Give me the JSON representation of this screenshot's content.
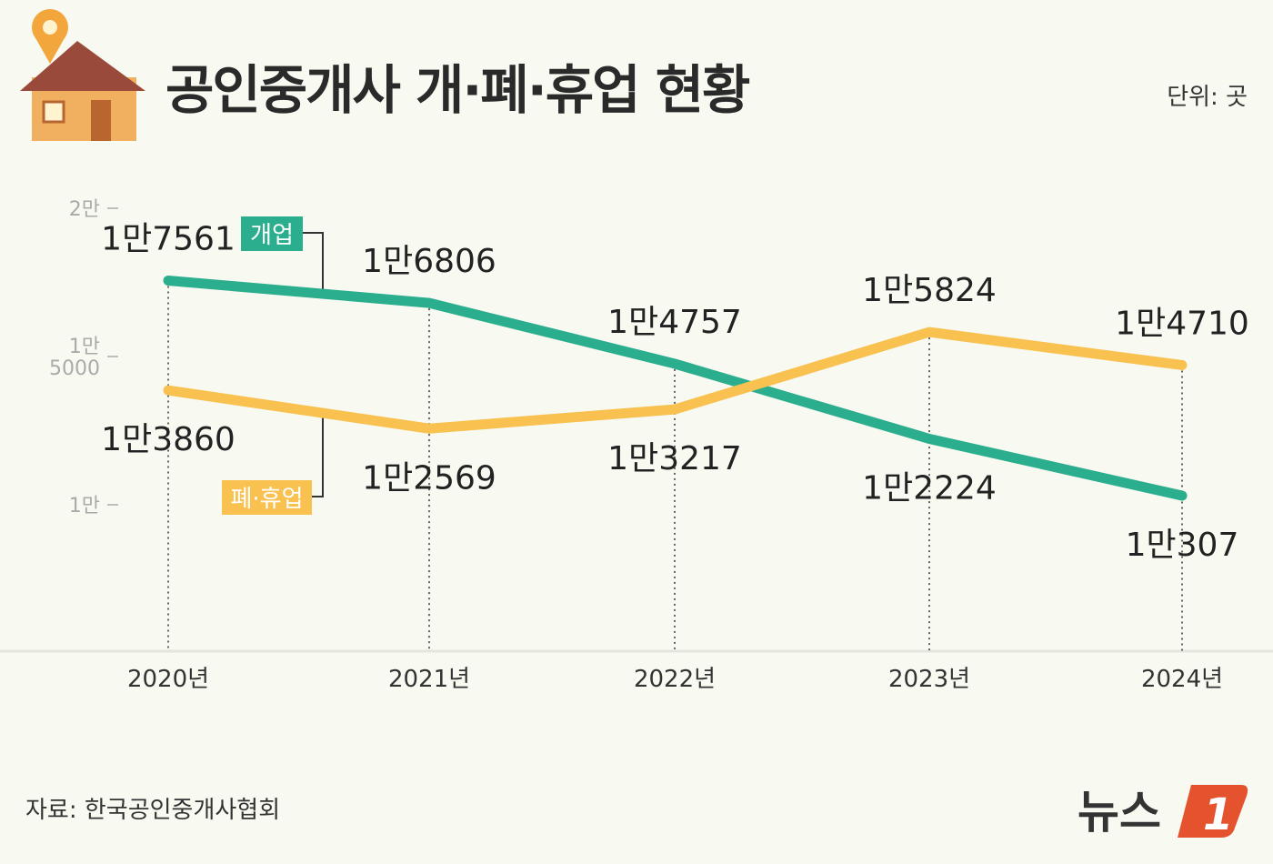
{
  "title": "공인중개사 개·폐·휴업 현황",
  "unit": "단위: 곳",
  "source": "자료: 한국공인중개사협회",
  "brand": "뉴스1",
  "colors": {
    "open": "#2bae8e",
    "closed": "#f8c150",
    "background": "#f8faf2",
    "brand": "#e4532d"
  },
  "chart_data": {
    "type": "line",
    "categories": [
      "2020년",
      "2021년",
      "2022년",
      "2023년",
      "2024년"
    ],
    "ylim": [
      5000,
      20000
    ],
    "yticks": [
      {
        "value": 20000,
        "label": "2만"
      },
      {
        "value": 15000,
        "label": "1만 5000"
      },
      {
        "value": 10000,
        "label": "1만"
      }
    ],
    "series": [
      {
        "name": "개업",
        "values": [
          17561,
          16806,
          14757,
          12224,
          10307
        ],
        "labels": [
          "1만7561",
          "1만6806",
          "1만4757",
          "1만2224",
          "1만307"
        ]
      },
      {
        "name": "폐·휴업",
        "values": [
          13860,
          12569,
          13217,
          15824,
          14710
        ],
        "labels": [
          "1만3860",
          "1만2569",
          "1만3217",
          "1만5824",
          "1만4710"
        ]
      }
    ]
  }
}
